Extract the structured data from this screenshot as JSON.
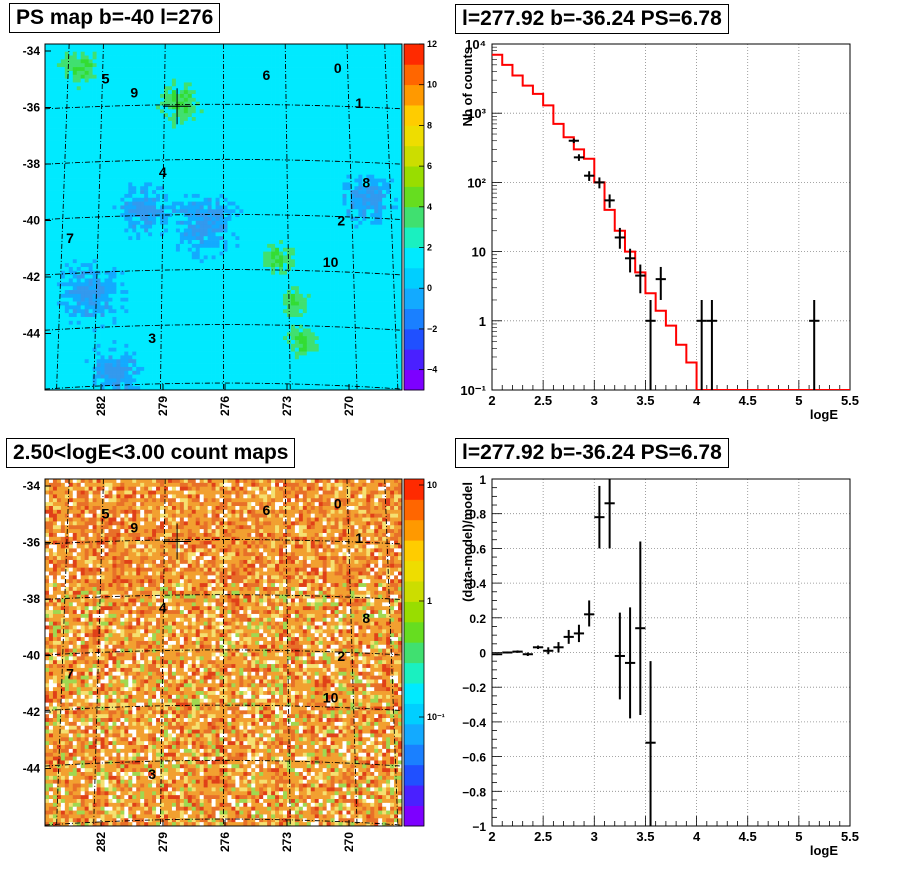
{
  "panels": {
    "map_top_title": "PS map b=-40 l=276",
    "spec_top_title": "l=277.92 b=-36.24 PS=6.78",
    "map_bottom_title": "2.50<logE<3.00 count maps",
    "spec_bottom_title": "l=277.92 b=-36.24 PS=6.78"
  },
  "chart_data": [
    {
      "type": "heatmap",
      "title": "PS map b=-40 l=276",
      "y_ticks": [
        "-34",
        "-36",
        "-38",
        "-40",
        "-42",
        "-44"
      ],
      "x_ticks": [
        "282",
        "279",
        "276",
        "273",
        "270"
      ],
      "colorbar_ticks": [
        "12",
        "10",
        "8",
        "6",
        "4",
        "2",
        "0",
        "−2",
        "−4"
      ],
      "colorbar_range": [
        -5,
        12
      ],
      "colorbar_scale": "linear",
      "sources": [
        "0",
        "1",
        "2",
        "3",
        "4",
        "5",
        "6",
        "7",
        "8",
        "9",
        "10"
      ],
      "colors": {
        "background": "#00eaff",
        "hot": "#33dd33",
        "cold": "#3399ee"
      }
    },
    {
      "type": "line",
      "title": "l=277.92 b=-36.24 PS=6.78",
      "xlabel": "logE",
      "ylabel": "Nb of counts",
      "xlim": [
        2,
        5.5
      ],
      "ylim": [
        0.1,
        10000
      ],
      "yscale": "log",
      "grid": true,
      "x_ticks": [
        "2",
        "2.5",
        "3",
        "3.5",
        "4",
        "4.5",
        "5",
        "5.5"
      ],
      "y_ticks": [
        "10⁻¹",
        "1",
        "10",
        "10²",
        "10³",
        "10⁴"
      ],
      "series": [
        {
          "style": "step",
          "color": "#ff0000",
          "bin_edges": [
            2.0,
            2.1,
            2.2,
            2.3,
            2.4,
            2.5,
            2.6,
            2.7,
            2.8,
            2.9,
            3.0,
            3.1,
            3.2,
            3.3,
            3.4,
            3.5,
            3.6,
            3.7,
            3.8,
            3.9,
            4.0,
            5.5
          ],
          "values": [
            7000,
            5000,
            3500,
            2500,
            1900,
            1300,
            700,
            450,
            300,
            220,
            100,
            40,
            20,
            10,
            5,
            2.5,
            1.4,
            0.85,
            0.45,
            0.25,
            0.1
          ]
        },
        {
          "style": "errorbar",
          "color": "#000000",
          "points": [
            {
              "x": 2.8,
              "y": 400,
              "lo": 370,
              "hi": 430
            },
            {
              "x": 2.85,
              "y": 230,
              "lo": 205,
              "hi": 255
            },
            {
              "x": 2.95,
              "y": 125,
              "lo": 105,
              "hi": 145
            },
            {
              "x": 3.05,
              "y": 100,
              "lo": 82,
              "hi": 118
            },
            {
              "x": 3.15,
              "y": 55,
              "lo": 43,
              "hi": 67
            },
            {
              "x": 3.25,
              "y": 16,
              "lo": 11,
              "hi": 22
            },
            {
              "x": 3.35,
              "y": 8,
              "lo": 5,
              "hi": 11
            },
            {
              "x": 3.45,
              "y": 4.5,
              "lo": 2.5,
              "hi": 6.5
            },
            {
              "x": 3.55,
              "y": 1,
              "lo": 0.1,
              "hi": 2
            },
            {
              "x": 3.65,
              "y": 4,
              "lo": 2,
              "hi": 6
            },
            {
              "x": 4.05,
              "y": 1,
              "lo": 0.1,
              "hi": 2
            },
            {
              "x": 4.15,
              "y": 1,
              "lo": 0.1,
              "hi": 2
            },
            {
              "x": 5.15,
              "y": 1,
              "lo": 0.1,
              "hi": 2
            }
          ]
        }
      ]
    },
    {
      "type": "heatmap",
      "title": "2.50<logE<3.00 count maps",
      "y_ticks": [
        "-34",
        "-36",
        "-38",
        "-40",
        "-42",
        "-44"
      ],
      "x_ticks": [
        "282",
        "279",
        "276",
        "273",
        "270"
      ],
      "colorbar_ticks": [
        "10",
        "1",
        "10⁻¹"
      ],
      "colorbar_scale": "log",
      "sources": [
        "0",
        "1",
        "2",
        "3",
        "4",
        "5",
        "6",
        "7",
        "8",
        "9",
        "10"
      ],
      "colors": {
        "main": "#f2a030",
        "warm": "#e85020",
        "light": "#f5d080",
        "green": "#a0d850"
      }
    },
    {
      "type": "scatter",
      "title": "l=277.92 b=-36.24 PS=6.78",
      "xlabel": "logE",
      "ylabel": "(data-model)/model",
      "xlim": [
        2,
        5.5
      ],
      "ylim": [
        -1,
        1
      ],
      "grid": true,
      "x_ticks": [
        "2",
        "2.5",
        "3",
        "3.5",
        "4",
        "4.5",
        "5",
        "5.5"
      ],
      "y_ticks": [
        "−1",
        "−0.8",
        "−0.6",
        "−0.4",
        "−0.2",
        "0",
        "0.2",
        "0.4",
        "0.6",
        "0.8",
        "1"
      ],
      "series": [
        {
          "style": "errorbar",
          "color": "#000000",
          "points": [
            {
              "x": 2.05,
              "y": -0.01,
              "lo": -0.015,
              "hi": -0.005
            },
            {
              "x": 2.15,
              "y": 0.0,
              "lo": -0.006,
              "hi": 0.006
            },
            {
              "x": 2.25,
              "y": 0.005,
              "lo": -0.002,
              "hi": 0.012
            },
            {
              "x": 2.35,
              "y": -0.01,
              "lo": -0.02,
              "hi": 0.0
            },
            {
              "x": 2.45,
              "y": 0.03,
              "lo": 0.02,
              "hi": 0.04
            },
            {
              "x": 2.55,
              "y": 0.01,
              "lo": -0.01,
              "hi": 0.03
            },
            {
              "x": 2.65,
              "y": 0.03,
              "lo": 0.0,
              "hi": 0.06
            },
            {
              "x": 2.75,
              "y": 0.09,
              "lo": 0.05,
              "hi": 0.13
            },
            {
              "x": 2.85,
              "y": 0.11,
              "lo": 0.06,
              "hi": 0.16
            },
            {
              "x": 2.95,
              "y": 0.22,
              "lo": 0.15,
              "hi": 0.3
            },
            {
              "x": 3.05,
              "y": 0.78,
              "lo": 0.6,
              "hi": 0.96
            },
            {
              "x": 3.15,
              "y": 0.86,
              "lo": 0.6,
              "hi": 1.12
            },
            {
              "x": 3.25,
              "y": -0.02,
              "lo": -0.27,
              "hi": 0.23
            },
            {
              "x": 3.35,
              "y": -0.06,
              "lo": -0.38,
              "hi": 0.26
            },
            {
              "x": 3.45,
              "y": 0.14,
              "lo": -0.36,
              "hi": 0.64
            },
            {
              "x": 3.55,
              "y": -0.52,
              "lo": -1.1,
              "hi": -0.05
            }
          ]
        }
      ]
    }
  ]
}
